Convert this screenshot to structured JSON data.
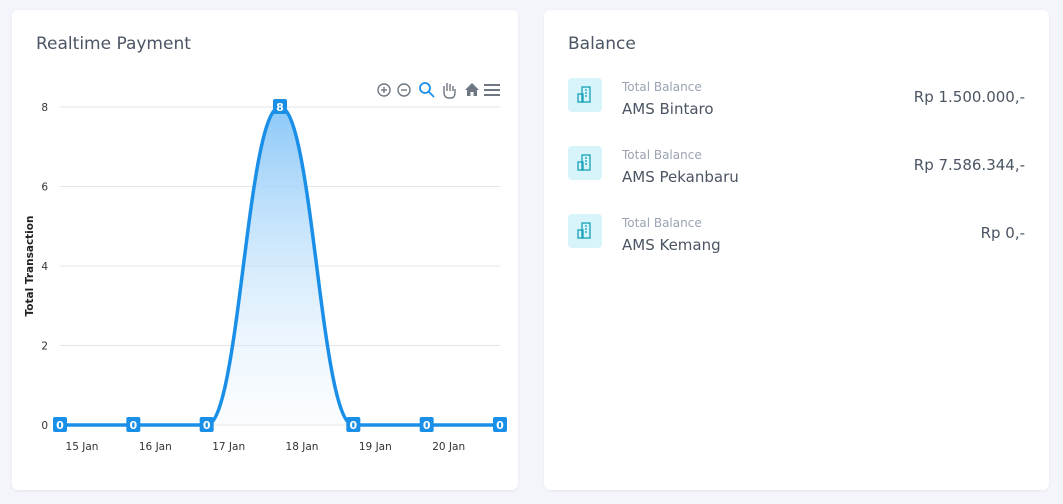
{
  "chart_data": {
    "type": "area",
    "title": "Realtime Payment",
    "categories": [
      "15 Jan",
      "16 Jan",
      "17 Jan",
      "18 Jan",
      "19 Jan",
      "20 Jan",
      null
    ],
    "values": [
      0,
      0,
      0,
      8,
      0,
      0,
      0
    ],
    "color": "#1a8fe8",
    "ylabel": "Total Transaction",
    "ylim": [
      0,
      8
    ],
    "yticks": [
      0,
      2,
      4,
      6,
      8
    ],
    "grid": true
  },
  "balance": {
    "title": "Balance",
    "items": [
      {
        "label": "Total Balance",
        "name": "AMS Bintaro",
        "amount": "Rp 1.500.000,-"
      },
      {
        "label": "Total Balance",
        "name": "AMS Pekanbaru",
        "amount": "Rp 7.586.344,-"
      },
      {
        "label": "Total Balance",
        "name": "AMS Kemang",
        "amount": "Rp 0,-"
      }
    ]
  }
}
